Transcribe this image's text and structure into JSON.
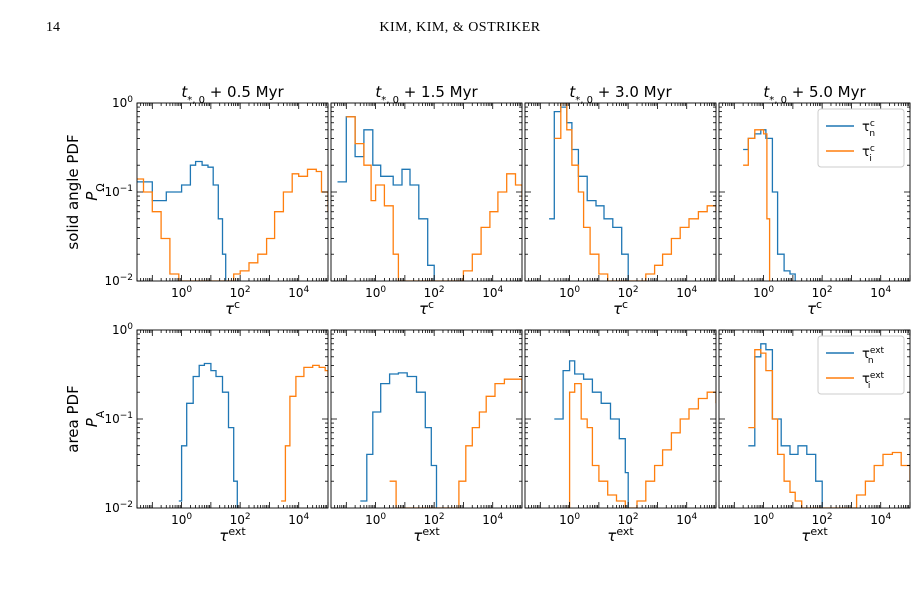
{
  "page": {
    "number": "14",
    "running_head": "KIM, KIM, & OSTRIKER"
  },
  "colors": {
    "neutral": "#1f77b4",
    "ionized": "#ff7f0e"
  },
  "chart_data": {
    "type": "line",
    "style": "step histogram",
    "grid": false,
    "x_scale": "log",
    "y_scale": "log",
    "xlim": [
      0.03,
      100000
    ],
    "ylim": [
      0.01,
      1
    ],
    "x_ticks": [
      {
        "value": 1,
        "base": "10",
        "exp": "0"
      },
      {
        "value": 100,
        "base": "10",
        "exp": "2"
      },
      {
        "value": 10000,
        "base": "10",
        "exp": "4"
      }
    ],
    "y_ticks": [
      {
        "value": 0.01,
        "base": "10",
        "exp": "−2"
      },
      {
        "value": 0.1,
        "base": "10",
        "exp": "−1"
      },
      {
        "value": 1,
        "base": "10",
        "exp": "0"
      }
    ],
    "column_titles": [
      {
        "main": "t",
        "sub": "*, 0",
        "rest": " +  0.5 Myr"
      },
      {
        "main": "t",
        "sub": "*, 0",
        "rest": " +  1.5 Myr"
      },
      {
        "main": "t",
        "sub": "*, 0",
        "rest": " +  3.0 Myr"
      },
      {
        "main": "t",
        "sub": "*, 0",
        "rest": " +  5.0 Myr"
      }
    ],
    "rows": [
      {
        "ylabel_line1": "solid angle PDF",
        "ylabel_sym": "P",
        "ylabel_sub": "Ω",
        "xlabel_sym": "τ",
        "xlabel_sup": "c",
        "legend": [
          {
            "sym": "τ",
            "sub": "n",
            "sup": "c"
          },
          {
            "sym": "τ",
            "sub": "i",
            "sup": "c"
          }
        ],
        "panels": [
          {
            "neutral": [
              [
                0.03,
                0.13
              ],
              [
                0.1,
                0.08
              ],
              [
                0.3,
                0.1
              ],
              [
                1,
                0.12
              ],
              [
                2,
                0.2
              ],
              [
                3,
                0.22
              ],
              [
                5,
                0.2
              ],
              [
                8,
                0.19
              ],
              [
                12,
                0.12
              ],
              [
                18,
                0.05
              ],
              [
                25,
                0.02
              ],
              [
                32,
                0.01
              ]
            ],
            "ionized": [
              [
                0.03,
                0.14
              ],
              [
                0.05,
                0.1
              ],
              [
                0.1,
                0.06
              ],
              [
                0.2,
                0.03
              ],
              [
                0.4,
                0.012
              ],
              [
                0.8,
                0.01
              ],
              [
                30,
                0.01
              ],
              [
                60,
                0.012
              ],
              [
                100,
                0.013
              ],
              [
                200,
                0.016
              ],
              [
                400,
                0.02
              ],
              [
                800,
                0.03
              ],
              [
                1500,
                0.06
              ],
              [
                3000,
                0.1
              ],
              [
                6000,
                0.16
              ],
              [
                10000,
                0.15
              ],
              [
                20000,
                0.18
              ],
              [
                40000,
                0.17
              ],
              [
                60000,
                0.1
              ],
              [
                100000,
                0.06
              ]
            ]
          },
          {
            "neutral": [
              [
                0.05,
                0.13
              ],
              [
                0.1,
                0.7
              ],
              [
                0.2,
                0.25
              ],
              [
                0.4,
                0.5
              ],
              [
                0.8,
                0.2
              ],
              [
                1.5,
                0.15
              ],
              [
                4,
                0.12
              ],
              [
                8,
                0.18
              ],
              [
                15,
                0.12
              ],
              [
                30,
                0.05
              ],
              [
                60,
                0.015
              ],
              [
                100,
                0.01
              ]
            ],
            "ionized": [
              [
                0.1,
                0.7
              ],
              [
                0.2,
                0.35
              ],
              [
                0.4,
                0.2
              ],
              [
                0.7,
                0.08
              ],
              [
                1,
                0.12
              ],
              [
                2,
                0.07
              ],
              [
                4,
                0.02
              ],
              [
                6,
                0.01
              ],
              [
                500,
                0.01
              ],
              [
                1000,
                0.013
              ],
              [
                2000,
                0.02
              ],
              [
                4000,
                0.04
              ],
              [
                8000,
                0.06
              ],
              [
                15000,
                0.1
              ],
              [
                30000,
                0.16
              ],
              [
                60000,
                0.12
              ],
              [
                100000,
                0.08
              ]
            ]
          },
          {
            "neutral": [
              [
                0.2,
                0.05
              ],
              [
                0.3,
                0.8
              ],
              [
                0.5,
                0.9
              ],
              [
                0.8,
                0.6
              ],
              [
                1.2,
                0.3
              ],
              [
                2,
                0.15
              ],
              [
                4,
                0.08
              ],
              [
                8,
                0.07
              ],
              [
                15,
                0.05
              ],
              [
                30,
                0.04
              ],
              [
                60,
                0.02
              ],
              [
                100,
                0.01
              ]
            ],
            "ionized": [
              [
                0.3,
                0.4
              ],
              [
                0.5,
                1
              ],
              [
                0.8,
                0.5
              ],
              [
                1.2,
                0.2
              ],
              [
                2,
                0.1
              ],
              [
                3,
                0.04
              ],
              [
                5,
                0.02
              ],
              [
                10,
                0.012
              ],
              [
                20,
                0.01
              ],
              [
                200,
                0.01
              ],
              [
                400,
                0.012
              ],
              [
                800,
                0.015
              ],
              [
                1500,
                0.02
              ],
              [
                3000,
                0.03
              ],
              [
                6000,
                0.04
              ],
              [
                12000,
                0.05
              ],
              [
                25000,
                0.06
              ],
              [
                50000,
                0.07
              ],
              [
                100000,
                0.06
              ]
            ]
          },
          {
            "neutral": [
              [
                0.2,
                0.3
              ],
              [
                0.3,
                0.4
              ],
              [
                0.5,
                0.45
              ],
              [
                0.8,
                0.5
              ],
              [
                1.2,
                0.4
              ],
              [
                2,
                0.1
              ],
              [
                3,
                0.02
              ],
              [
                5,
                0.013
              ],
              [
                8,
                0.012
              ],
              [
                12,
                0.01
              ]
            ],
            "ionized": [
              [
                0.2,
                0.2
              ],
              [
                0.3,
                0.4
              ],
              [
                0.5,
                0.5
              ],
              [
                0.8,
                0.5
              ],
              [
                1,
                0.45
              ],
              [
                1.3,
                0.05
              ],
              [
                1.6,
                0.01
              ]
            ]
          }
        ]
      },
      {
        "ylabel_line1": "area PDF",
        "ylabel_sym": "P",
        "ylabel_sub": "A",
        "xlabel_sym": "τ",
        "xlabel_sup": "ext",
        "legend": [
          {
            "sym": "τ",
            "sub": "n",
            "sup": "ext"
          },
          {
            "sym": "τ",
            "sub": "i",
            "sup": "ext"
          }
        ],
        "panels": [
          {
            "neutral": [
              [
                0.8,
                0.012
              ],
              [
                1,
                0.05
              ],
              [
                1.5,
                0.15
              ],
              [
                2.5,
                0.3
              ],
              [
                4,
                0.4
              ],
              [
                6,
                0.42
              ],
              [
                10,
                0.35
              ],
              [
                15,
                0.3
              ],
              [
                25,
                0.2
              ],
              [
                40,
                0.08
              ],
              [
                60,
                0.02
              ],
              [
                80,
                0.01
              ]
            ],
            "ionized": [
              [
                2500,
                0.012
              ],
              [
                3500,
                0.05
              ],
              [
                5000,
                0.18
              ],
              [
                8000,
                0.3
              ],
              [
                15000,
                0.38
              ],
              [
                30000,
                0.4
              ],
              [
                50000,
                0.38
              ],
              [
                80000,
                0.35
              ],
              [
                100000,
                0.3
              ]
            ]
          },
          {
            "neutral": [
              [
                0.3,
                0.012
              ],
              [
                0.5,
                0.04
              ],
              [
                0.8,
                0.12
              ],
              [
                1.5,
                0.25
              ],
              [
                3,
                0.32
              ],
              [
                6,
                0.33
              ],
              [
                12,
                0.3
              ],
              [
                25,
                0.2
              ],
              [
                50,
                0.08
              ],
              [
                80,
                0.03
              ],
              [
                120,
                0.01
              ]
            ],
            "ionized": [
              [
                3,
                0.02
              ],
              [
                5,
                0.01
              ],
              [
                400,
                0.01
              ],
              [
                700,
                0.02
              ],
              [
                1200,
                0.05
              ],
              [
                2000,
                0.08
              ],
              [
                3500,
                0.12
              ],
              [
                6000,
                0.18
              ],
              [
                12000,
                0.25
              ],
              [
                25000,
                0.28
              ],
              [
                50000,
                0.28
              ],
              [
                100000,
                0.2
              ]
            ]
          },
          {
            "neutral": [
              [
                0.3,
                0.1
              ],
              [
                0.6,
                0.35
              ],
              [
                1,
                0.45
              ],
              [
                1.5,
                0.32
              ],
              [
                3,
                0.28
              ],
              [
                6,
                0.2
              ],
              [
                12,
                0.15
              ],
              [
                25,
                0.1
              ],
              [
                50,
                0.06
              ],
              [
                80,
                0.025
              ],
              [
                100,
                0.01
              ]
            ],
            "ionized": [
              [
                0.8,
                0.01
              ],
              [
                1,
                0.2
              ],
              [
                1.5,
                0.25
              ],
              [
                2.5,
                0.1
              ],
              [
                4,
                0.08
              ],
              [
                6,
                0.03
              ],
              [
                10,
                0.02
              ],
              [
                20,
                0.014
              ],
              [
                40,
                0.012
              ],
              [
                80,
                0.01
              ],
              [
                200,
                0.012
              ],
              [
                400,
                0.02
              ],
              [
                800,
                0.03
              ],
              [
                1500,
                0.045
              ],
              [
                3000,
                0.07
              ],
              [
                6000,
                0.1
              ],
              [
                12000,
                0.13
              ],
              [
                25000,
                0.17
              ],
              [
                50000,
                0.2
              ],
              [
                100000,
                0.15
              ]
            ]
          },
          {
            "neutral": [
              [
                0.3,
                0.05
              ],
              [
                0.5,
                0.5
              ],
              [
                0.8,
                0.7
              ],
              [
                1.2,
                0.6
              ],
              [
                2,
                0.1
              ],
              [
                4,
                0.05
              ],
              [
                8,
                0.04
              ],
              [
                15,
                0.05
              ],
              [
                30,
                0.04
              ],
              [
                60,
                0.02
              ],
              [
                100,
                0.01
              ]
            ],
            "ionized": [
              [
                0.3,
                0.08
              ],
              [
                0.5,
                0.6
              ],
              [
                0.8,
                0.55
              ],
              [
                1.2,
                0.35
              ],
              [
                2,
                0.1
              ],
              [
                3,
                0.04
              ],
              [
                5,
                0.02
              ],
              [
                8,
                0.015
              ],
              [
                12,
                0.012
              ],
              [
                20,
                0.01
              ],
              [
                700,
                0.01
              ],
              [
                1500,
                0.014
              ],
              [
                3000,
                0.02
              ],
              [
                6000,
                0.03
              ],
              [
                12000,
                0.04
              ],
              [
                25000,
                0.042
              ],
              [
                50000,
                0.03
              ],
              [
                100000,
                0.02
              ]
            ]
          }
        ]
      }
    ]
  }
}
